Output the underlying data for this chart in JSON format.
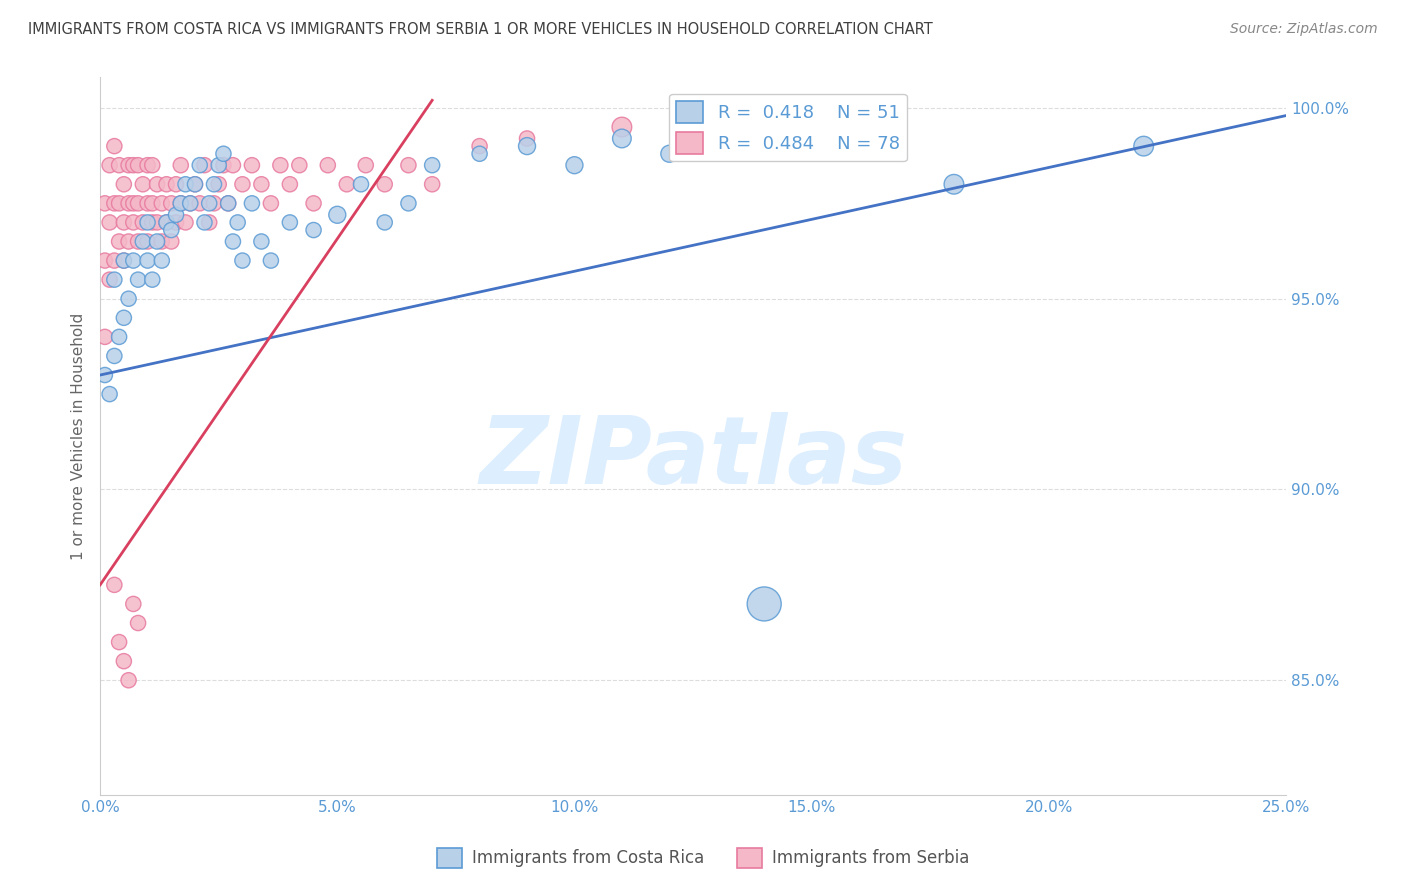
{
  "title": "IMMIGRANTS FROM COSTA RICA VS IMMIGRANTS FROM SERBIA 1 OR MORE VEHICLES IN HOUSEHOLD CORRELATION CHART",
  "source": "Source: ZipAtlas.com",
  "ylabel": "1 or more Vehicles in Household",
  "xlim": [
    0.0,
    0.25
  ],
  "ylim": [
    0.82,
    1.008
  ],
  "xticks": [
    0.0,
    0.05,
    0.1,
    0.15,
    0.2,
    0.25
  ],
  "xticklabels": [
    "0.0%",
    "5.0%",
    "10.0%",
    "15.0%",
    "20.0%",
    "25.0%"
  ],
  "yticks": [
    0.85,
    0.9,
    0.95,
    1.0
  ],
  "yticklabels": [
    "85.0%",
    "90.0%",
    "95.0%",
    "100.0%"
  ],
  "costa_rica_R": 0.418,
  "costa_rica_N": 51,
  "serbia_R": 0.484,
  "serbia_N": 78,
  "blue_color": "#b8d0e8",
  "blue_edge": "#5b9bd5",
  "pink_color": "#f4b8c8",
  "pink_edge": "#e87a9f",
  "blue_line": "#4472c4",
  "pink_line": "#d94060",
  "watermark_color": "#ddeeff",
  "watermark_text": "ZIPatlas",
  "background_color": "#ffffff",
  "grid_color": "#dddddd",
  "title_color": "#404040",
  "axis_color": "#5b9bd5",
  "legend_label_blue": "R =  0.418    N = 51",
  "legend_label_pink": "R =  0.484    N = 78",
  "costa_rica_x": [
    0.001,
    0.002,
    0.003,
    0.003,
    0.004,
    0.005,
    0.005,
    0.006,
    0.007,
    0.008,
    0.009,
    0.01,
    0.01,
    0.011,
    0.012,
    0.013,
    0.014,
    0.015,
    0.016,
    0.017,
    0.018,
    0.019,
    0.02,
    0.021,
    0.022,
    0.023,
    0.024,
    0.025,
    0.026,
    0.027,
    0.028,
    0.029,
    0.03,
    0.032,
    0.034,
    0.036,
    0.04,
    0.045,
    0.05,
    0.055,
    0.06,
    0.065,
    0.07,
    0.08,
    0.09,
    0.1,
    0.11,
    0.12,
    0.14,
    0.18,
    0.22
  ],
  "costa_rica_y": [
    0.93,
    0.925,
    0.935,
    0.955,
    0.94,
    0.945,
    0.96,
    0.95,
    0.96,
    0.955,
    0.965,
    0.96,
    0.97,
    0.955,
    0.965,
    0.96,
    0.97,
    0.968,
    0.972,
    0.975,
    0.98,
    0.975,
    0.98,
    0.985,
    0.97,
    0.975,
    0.98,
    0.985,
    0.988,
    0.975,
    0.965,
    0.97,
    0.96,
    0.975,
    0.965,
    0.96,
    0.97,
    0.968,
    0.972,
    0.98,
    0.97,
    0.975,
    0.985,
    0.988,
    0.99,
    0.985,
    0.992,
    0.988,
    0.87,
    0.98,
    0.99
  ],
  "costa_rica_sizes": [
    120,
    120,
    120,
    120,
    120,
    120,
    120,
    120,
    120,
    120,
    120,
    120,
    120,
    120,
    120,
    120,
    120,
    120,
    120,
    120,
    120,
    120,
    120,
    120,
    120,
    120,
    120,
    120,
    120,
    120,
    120,
    120,
    120,
    120,
    120,
    120,
    120,
    120,
    150,
    120,
    120,
    120,
    120,
    120,
    150,
    150,
    180,
    150,
    600,
    200,
    200
  ],
  "serbia_x": [
    0.001,
    0.001,
    0.001,
    0.002,
    0.002,
    0.002,
    0.003,
    0.003,
    0.003,
    0.004,
    0.004,
    0.004,
    0.005,
    0.005,
    0.005,
    0.006,
    0.006,
    0.006,
    0.007,
    0.007,
    0.007,
    0.008,
    0.008,
    0.008,
    0.009,
    0.009,
    0.01,
    0.01,
    0.01,
    0.011,
    0.011,
    0.011,
    0.012,
    0.012,
    0.013,
    0.013,
    0.014,
    0.014,
    0.015,
    0.015,
    0.016,
    0.016,
    0.017,
    0.017,
    0.018,
    0.019,
    0.02,
    0.021,
    0.022,
    0.023,
    0.024,
    0.025,
    0.026,
    0.027,
    0.028,
    0.03,
    0.032,
    0.034,
    0.036,
    0.038,
    0.04,
    0.042,
    0.045,
    0.048,
    0.052,
    0.056,
    0.06,
    0.065,
    0.07,
    0.08,
    0.09,
    0.003,
    0.004,
    0.005,
    0.006,
    0.007,
    0.008,
    0.11
  ],
  "serbia_y": [
    0.94,
    0.96,
    0.975,
    0.955,
    0.97,
    0.985,
    0.96,
    0.975,
    0.99,
    0.965,
    0.975,
    0.985,
    0.96,
    0.97,
    0.98,
    0.965,
    0.975,
    0.985,
    0.97,
    0.975,
    0.985,
    0.965,
    0.975,
    0.985,
    0.97,
    0.98,
    0.965,
    0.975,
    0.985,
    0.97,
    0.975,
    0.985,
    0.97,
    0.98,
    0.965,
    0.975,
    0.97,
    0.98,
    0.965,
    0.975,
    0.97,
    0.98,
    0.975,
    0.985,
    0.97,
    0.975,
    0.98,
    0.975,
    0.985,
    0.97,
    0.975,
    0.98,
    0.985,
    0.975,
    0.985,
    0.98,
    0.985,
    0.98,
    0.975,
    0.985,
    0.98,
    0.985,
    0.975,
    0.985,
    0.98,
    0.985,
    0.98,
    0.985,
    0.98,
    0.99,
    0.992,
    0.875,
    0.86,
    0.855,
    0.85,
    0.87,
    0.865,
    0.995
  ],
  "serbia_sizes": [
    120,
    120,
    120,
    120,
    120,
    120,
    120,
    120,
    120,
    120,
    120,
    120,
    120,
    120,
    120,
    120,
    120,
    120,
    120,
    120,
    120,
    120,
    120,
    120,
    120,
    120,
    120,
    120,
    120,
    120,
    120,
    120,
    120,
    120,
    120,
    120,
    120,
    120,
    120,
    120,
    120,
    120,
    120,
    120,
    120,
    120,
    120,
    120,
    120,
    120,
    120,
    120,
    120,
    120,
    120,
    120,
    120,
    120,
    120,
    120,
    120,
    120,
    120,
    120,
    120,
    120,
    120,
    120,
    120,
    120,
    120,
    120,
    120,
    120,
    120,
    120,
    120,
    200
  ]
}
